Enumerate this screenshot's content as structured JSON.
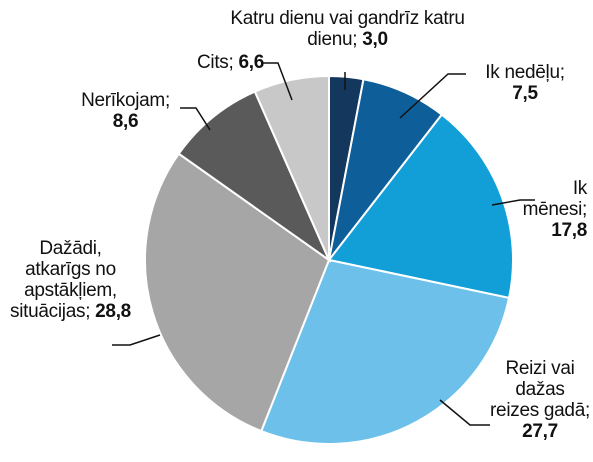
{
  "chart_data": {
    "type": "pie",
    "categories": [
      "Katru dienu vai gandrīz katru dienu;",
      "Ik nedēļu;",
      "Ik mēnesi;",
      "Reizi vai dažas reizes gadā;",
      "Dažādi, atkarīgs no apstākļiem, situācijas;",
      "Nerīkojam;",
      "Cits;"
    ],
    "values": [
      3.0,
      7.5,
      17.8,
      27.7,
      28.8,
      8.6,
      6.6
    ],
    "value_labels": [
      "3,0",
      "7,5",
      "17,8",
      "27,7",
      "28,8",
      "8,6",
      "6,6"
    ],
    "colors": [
      "#14375e",
      "#0e5f99",
      "#129fd8",
      "#6dc0ea",
      "#a6a6a6",
      "#5a5a5a",
      "#c8c8c8"
    ]
  }
}
